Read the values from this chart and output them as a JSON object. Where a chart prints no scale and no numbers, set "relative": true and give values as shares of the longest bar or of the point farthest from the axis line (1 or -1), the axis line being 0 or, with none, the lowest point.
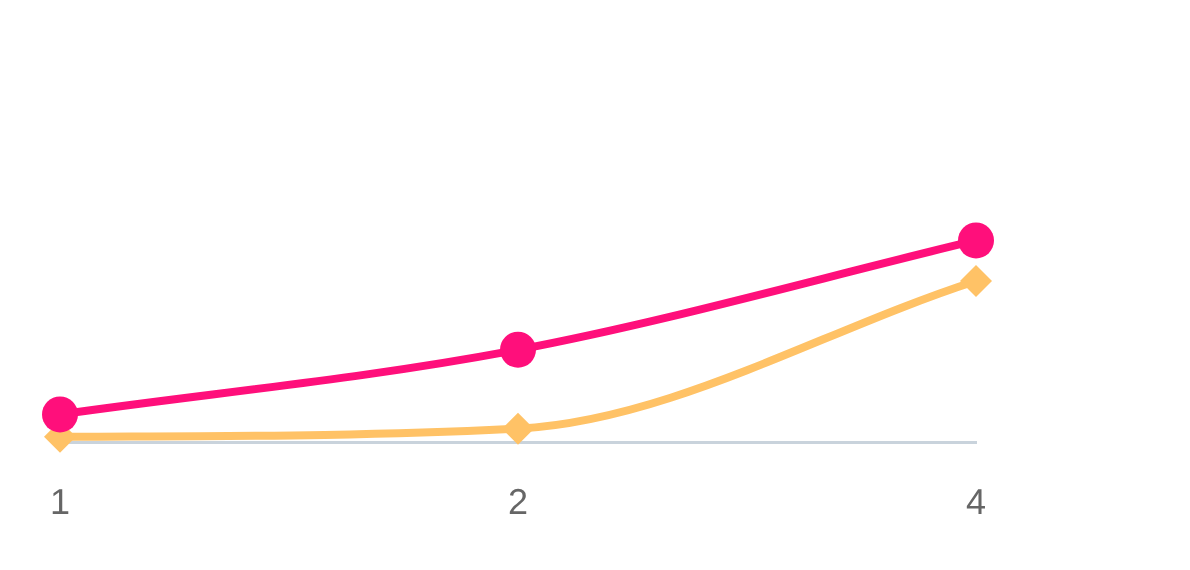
{
  "chart_data": {
    "type": "line",
    "relative": true,
    "categories": [
      "1",
      "2",
      "4"
    ],
    "series": [
      {
        "color": "#ff0f7b",
        "values": [
          0.14,
          0.46,
          1
        ],
        "marker": "circle"
      },
      {
        "color": "#ffc266",
        "values": [
          0.03,
          0.07,
          0.8
        ],
        "marker": "diamond"
      }
    ],
    "legend": false,
    "grid": false,
    "line_style": "solid"
  }
}
